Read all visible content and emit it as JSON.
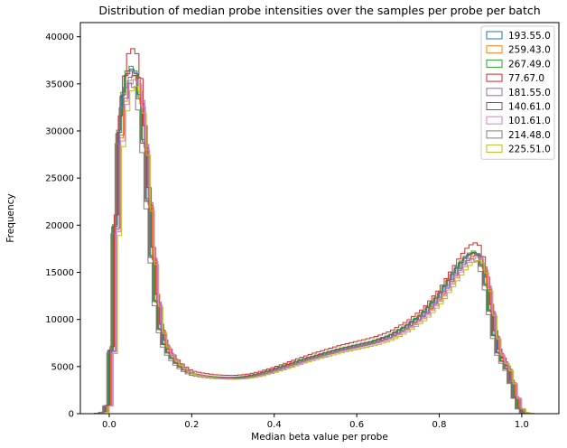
{
  "chart_data": {
    "type": "histogram",
    "title": "Distribution of median probe intensities over the samples per probe per batch",
    "xlabel": "Median beta value per probe",
    "ylabel": "Frequency",
    "xlim": [
      -0.07,
      1.09
    ],
    "ylim": [
      0,
      41500
    ],
    "x_ticks": [
      0.0,
      0.2,
      0.4,
      0.6,
      0.8,
      1.0
    ],
    "x_tick_labels": [
      "0.0",
      "0.2",
      "0.4",
      "0.6",
      "0.8",
      "1.0"
    ],
    "y_ticks": [
      0,
      5000,
      10000,
      15000,
      20000,
      25000,
      30000,
      35000,
      40000
    ],
    "y_tick_labels": [
      "0",
      "5000",
      "10000",
      "15000",
      "20000",
      "25000",
      "30000",
      "35000",
      "40000"
    ],
    "legend_position": "top-right",
    "histtype": "step",
    "base_profile": {
      "x": [
        -0.03,
        -0.01,
        0.0,
        0.01,
        0.02,
        0.04,
        0.06,
        0.07,
        0.08,
        0.09,
        0.1,
        0.11,
        0.12,
        0.13,
        0.14,
        0.16,
        0.18,
        0.2,
        0.23,
        0.26,
        0.3,
        0.33,
        0.36,
        0.4,
        0.44,
        0.48,
        0.52,
        0.56,
        0.6,
        0.64,
        0.68,
        0.72,
        0.76,
        0.8,
        0.83,
        0.85,
        0.87,
        0.89,
        0.9,
        0.91,
        0.92,
        0.93,
        0.94,
        0.95,
        0.96,
        0.97,
        0.98,
        0.99,
        1.0,
        1.02
      ],
      "y": [
        0,
        200,
        1500,
        12000,
        28000,
        36000,
        37000,
        35500,
        32000,
        26000,
        19500,
        14000,
        10000,
        8000,
        6800,
        5600,
        4800,
        4300,
        4050,
        3900,
        3850,
        3950,
        4200,
        4700,
        5300,
        5900,
        6400,
        6900,
        7300,
        7700,
        8300,
        9300,
        10600,
        12600,
        14600,
        15900,
        16900,
        17300,
        16600,
        15000,
        12500,
        9500,
        7200,
        5800,
        5400,
        4200,
        2500,
        900,
        150,
        0
      ]
    },
    "bin_width": 0.01,
    "series": [
      {
        "name": "193.55.0",
        "color": "#1f77b4",
        "shift": 0.0,
        "scale": 0.995
      },
      {
        "name": "259.43.0",
        "color": "#ff7f0e",
        "shift": 0.004,
        "scale": 0.975
      },
      {
        "name": "267.49.0",
        "color": "#2ca02c",
        "shift": -0.002,
        "scale": 1.003
      },
      {
        "name": "77.67.0",
        "color": "#d62728",
        "shift": 0.002,
        "scale": 1.054
      },
      {
        "name": "181.55.0",
        "color": "#9467bd",
        "shift": 0.006,
        "scale": 0.985
      },
      {
        "name": "140.61.0",
        "color": "#8c564b",
        "shift": -0.004,
        "scale": 0.99
      },
      {
        "name": "101.61.0",
        "color": "#e377c2",
        "shift": 0.008,
        "scale": 0.965
      },
      {
        "name": "214.48.0",
        "color": "#7f7f7f",
        "shift": -0.006,
        "scale": 0.955
      },
      {
        "name": "225.51.0",
        "color": "#bcbd22",
        "shift": 0.01,
        "scale": 0.945
      }
    ]
  }
}
